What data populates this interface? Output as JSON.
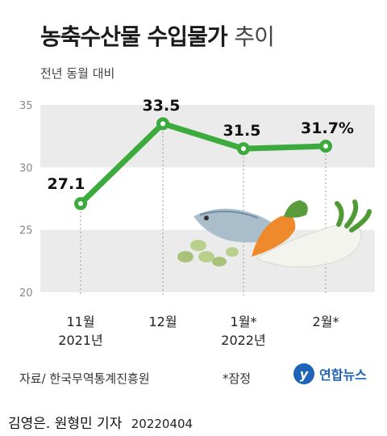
{
  "title": {
    "bold": "농축수산물 수입물가",
    "light": "추이"
  },
  "subtitle": "전년 동월 대비",
  "chart_data": {
    "type": "line",
    "categories": [
      "11월\n2021년",
      "12월",
      "1월*\n2022년",
      "2월*"
    ],
    "values": [
      27.1,
      33.5,
      31.5,
      31.7
    ],
    "data_labels": [
      "27.1",
      "33.5",
      "31.5",
      "31.7%"
    ],
    "yticks": [
      "35",
      "30",
      "25",
      "20"
    ],
    "ylim": [
      20,
      35
    ],
    "line_color": "#3caa3c",
    "band_color": "#ebebeb"
  },
  "footer": {
    "source": "자료/ 한국무역통계진흥원",
    "note": "*잠정",
    "logo_mark": "y",
    "logo_text": "연합뉴스"
  },
  "credit": {
    "author": "김영은. 원형민 기자",
    "date": "20220404"
  }
}
